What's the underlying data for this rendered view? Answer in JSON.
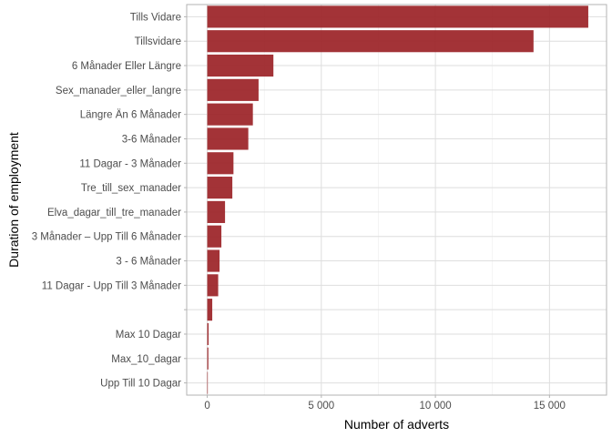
{
  "chart_data": {
    "type": "bar",
    "orientation": "horizontal",
    "xlabel": "Number of adverts",
    "ylabel": "Duration of employment",
    "xlim": [
      -900,
      17500
    ],
    "x_ticks": [
      0,
      5000,
      10000,
      15000
    ],
    "x_tick_labels": [
      "0",
      "5 000",
      "10 000",
      "15 000"
    ],
    "grid": true,
    "bar_color": "#9b2226",
    "categories": [
      "Tills Vidare",
      "Tillsvidare",
      "6 Månader Eller Längre",
      "Sex_manader_eller_langre",
      "Längre Än 6 Månader",
      "3-6 Månader",
      "11 Dagar - 3 Månader",
      "Tre_till_sex_manader",
      "Elva_dagar_till_tre_manader",
      "3 Månader – Upp Till 6 Månader",
      "3 - 6 Månader",
      "11 Dagar - Upp Till 3 Månader",
      "",
      "Max 10 Dagar",
      "Max_10_dagar",
      "Upp Till 10 Dagar"
    ],
    "values": [
      16700,
      14300,
      2900,
      2250,
      2000,
      1800,
      1150,
      1100,
      780,
      620,
      540,
      480,
      220,
      60,
      50,
      15
    ]
  }
}
